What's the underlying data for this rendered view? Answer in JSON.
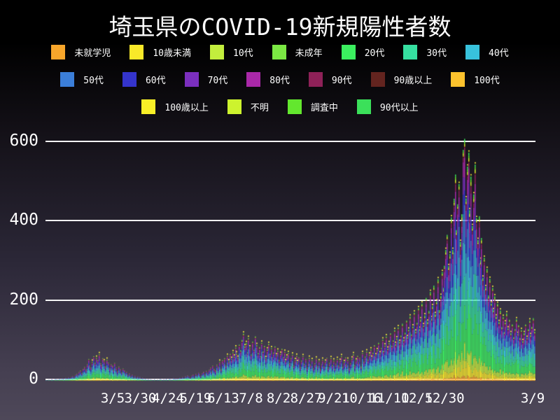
{
  "title": "埼玉県のCOVID-19新規陽性者数",
  "chart_data": {
    "type": "bar",
    "stacked": true,
    "title": "埼玉県のCOVID-19新規陽性者数",
    "xlabel": "",
    "ylabel": "",
    "grid": "horizontal",
    "legend_position": "top",
    "y_ticks": [
      0,
      200,
      400,
      600
    ],
    "ylim": [
      0,
      630
    ],
    "x_tick_labels": [
      "3/5",
      "3/30",
      "4/24",
      "5/19",
      "6/13",
      "7/8",
      "8/2",
      "8/27",
      "9/21",
      "10/16",
      "11/10",
      "12/5",
      "12/30",
      "3/9"
    ],
    "series": [
      {
        "label": "未就学児",
        "color": "#f7a62b",
        "share": 0.02
      },
      {
        "label": "10歳未満",
        "color": "#f9e929",
        "share": 0.05
      },
      {
        "label": "10代",
        "color": "#c3ee3d",
        "share": 0.06
      },
      {
        "label": "未成年",
        "color": "#7be843",
        "share": 0.01
      },
      {
        "label": "20代",
        "color": "#3bef5f",
        "share": 0.18
      },
      {
        "label": "30代",
        "color": "#36dfa0",
        "share": 0.15
      },
      {
        "label": "40代",
        "color": "#38c2dc",
        "share": 0.13
      },
      {
        "label": "50代",
        "color": "#3b7ed8",
        "share": 0.12
      },
      {
        "label": "60代",
        "color": "#3434cc",
        "share": 0.08
      },
      {
        "label": "70代",
        "color": "#7b2fbe",
        "share": 0.07
      },
      {
        "label": "80代",
        "color": "#a928a8",
        "share": 0.06
      },
      {
        "label": "90代",
        "color": "#8e2158",
        "share": 0.03
      },
      {
        "label": "90歳以上",
        "color": "#63241f",
        "share": 0.005
      },
      {
        "label": "100代",
        "color": "#fcc22d",
        "share": 0.002
      },
      {
        "label": "100歳以上",
        "color": "#f8ef27",
        "share": 0.003
      },
      {
        "label": "不明",
        "color": "#cdf32e",
        "share": 0.01
      },
      {
        "label": "調査中",
        "color": "#63e72e",
        "share": 0.01
      },
      {
        "label": "90代以上",
        "color": "#3be05a",
        "share": 0.01
      }
    ],
    "legend_rows": [
      [
        0,
        1,
        2,
        3,
        4,
        5,
        6
      ],
      [
        7,
        8,
        9,
        10,
        11,
        12,
        13
      ],
      [
        14,
        15,
        16,
        17
      ]
    ],
    "daily_totals": [
      2,
      1,
      3,
      2,
      4,
      3,
      2,
      5,
      4,
      3,
      6,
      4,
      7,
      5,
      3,
      8,
      6,
      9,
      7,
      10,
      12,
      9,
      15,
      18,
      14,
      22,
      26,
      19,
      30,
      35,
      28,
      42,
      55,
      38,
      33,
      48,
      62,
      45,
      58,
      52,
      67,
      44,
      39,
      57,
      49,
      36,
      53,
      46,
      31,
      42,
      38,
      27,
      45,
      33,
      24,
      36,
      29,
      21,
      31,
      26,
      18,
      23,
      15,
      19,
      12,
      16,
      9,
      13,
      8,
      11,
      7,
      10,
      5,
      8,
      4,
      6,
      3,
      5,
      2,
      4,
      3,
      2,
      4,
      1,
      3,
      2,
      5,
      3,
      2,
      4,
      3,
      5,
      2,
      6,
      4,
      3,
      7,
      5,
      4,
      6,
      5,
      8,
      6,
      10,
      7,
      12,
      9,
      14,
      11,
      8,
      13,
      16,
      10,
      18,
      14,
      21,
      17,
      12,
      19,
      23,
      16,
      25,
      20,
      28,
      33,
      22,
      38,
      30,
      26,
      41,
      35,
      48,
      29,
      52,
      44,
      57,
      38,
      63,
      49,
      68,
      55,
      72,
      61,
      84,
      69,
      58,
      91,
      77,
      103,
      119,
      87,
      95,
      72,
      108,
      84,
      66,
      99,
      78,
      112,
      90,
      70,
      85,
      62,
      96,
      74,
      88,
      57,
      79,
      93,
      68,
      82,
      59,
      71,
      87,
      64,
      76,
      52,
      68,
      81,
      60,
      73,
      49,
      61,
      70,
      44,
      57,
      66,
      38,
      52,
      63,
      47,
      59,
      35,
      51,
      62,
      42,
      55,
      33,
      46,
      58,
      40,
      52,
      31,
      44,
      56,
      37,
      49,
      29,
      42,
      53,
      36,
      48,
      58,
      33,
      45,
      57,
      39,
      51,
      30,
      43,
      55,
      38,
      50,
      62,
      35,
      47,
      59,
      41,
      53,
      32,
      44,
      56,
      67,
      39,
      51,
      63,
      46,
      58,
      36,
      70,
      48,
      61,
      74,
      53,
      66,
      79,
      58,
      71,
      90,
      64,
      77,
      96,
      69,
      83,
      104,
      75,
      89,
      112,
      81,
      95,
      120,
      88,
      102,
      128,
      93,
      107,
      135,
      98,
      114,
      144,
      104,
      121,
      152,
      110,
      129,
      162,
      117,
      137,
      172,
      124,
      146,
      183,
      131,
      155,
      195,
      140,
      165,
      209,
      149,
      176,
      224,
      158,
      188,
      240,
      168,
      200,
      256,
      178,
      214,
      274,
      234,
      290,
      330,
      368,
      289,
      320,
      412,
      330,
      459,
      520,
      380,
      445,
      496,
      350,
      420,
      582,
      610,
      460,
      540,
      575,
      430,
      515,
      390,
      470,
      545,
      410,
      355,
      415,
      305,
      360,
      260,
      310,
      236,
      282,
      215,
      257,
      195,
      234,
      178,
      213,
      162,
      194,
      148,
      177,
      135,
      161,
      123,
      147,
      170,
      132,
      154,
      120,
      142,
      110,
      130,
      155,
      118,
      140,
      108,
      128,
      100,
      120,
      142,
      108,
      130,
      152,
      115,
      136,
      158,
      124
    ]
  }
}
